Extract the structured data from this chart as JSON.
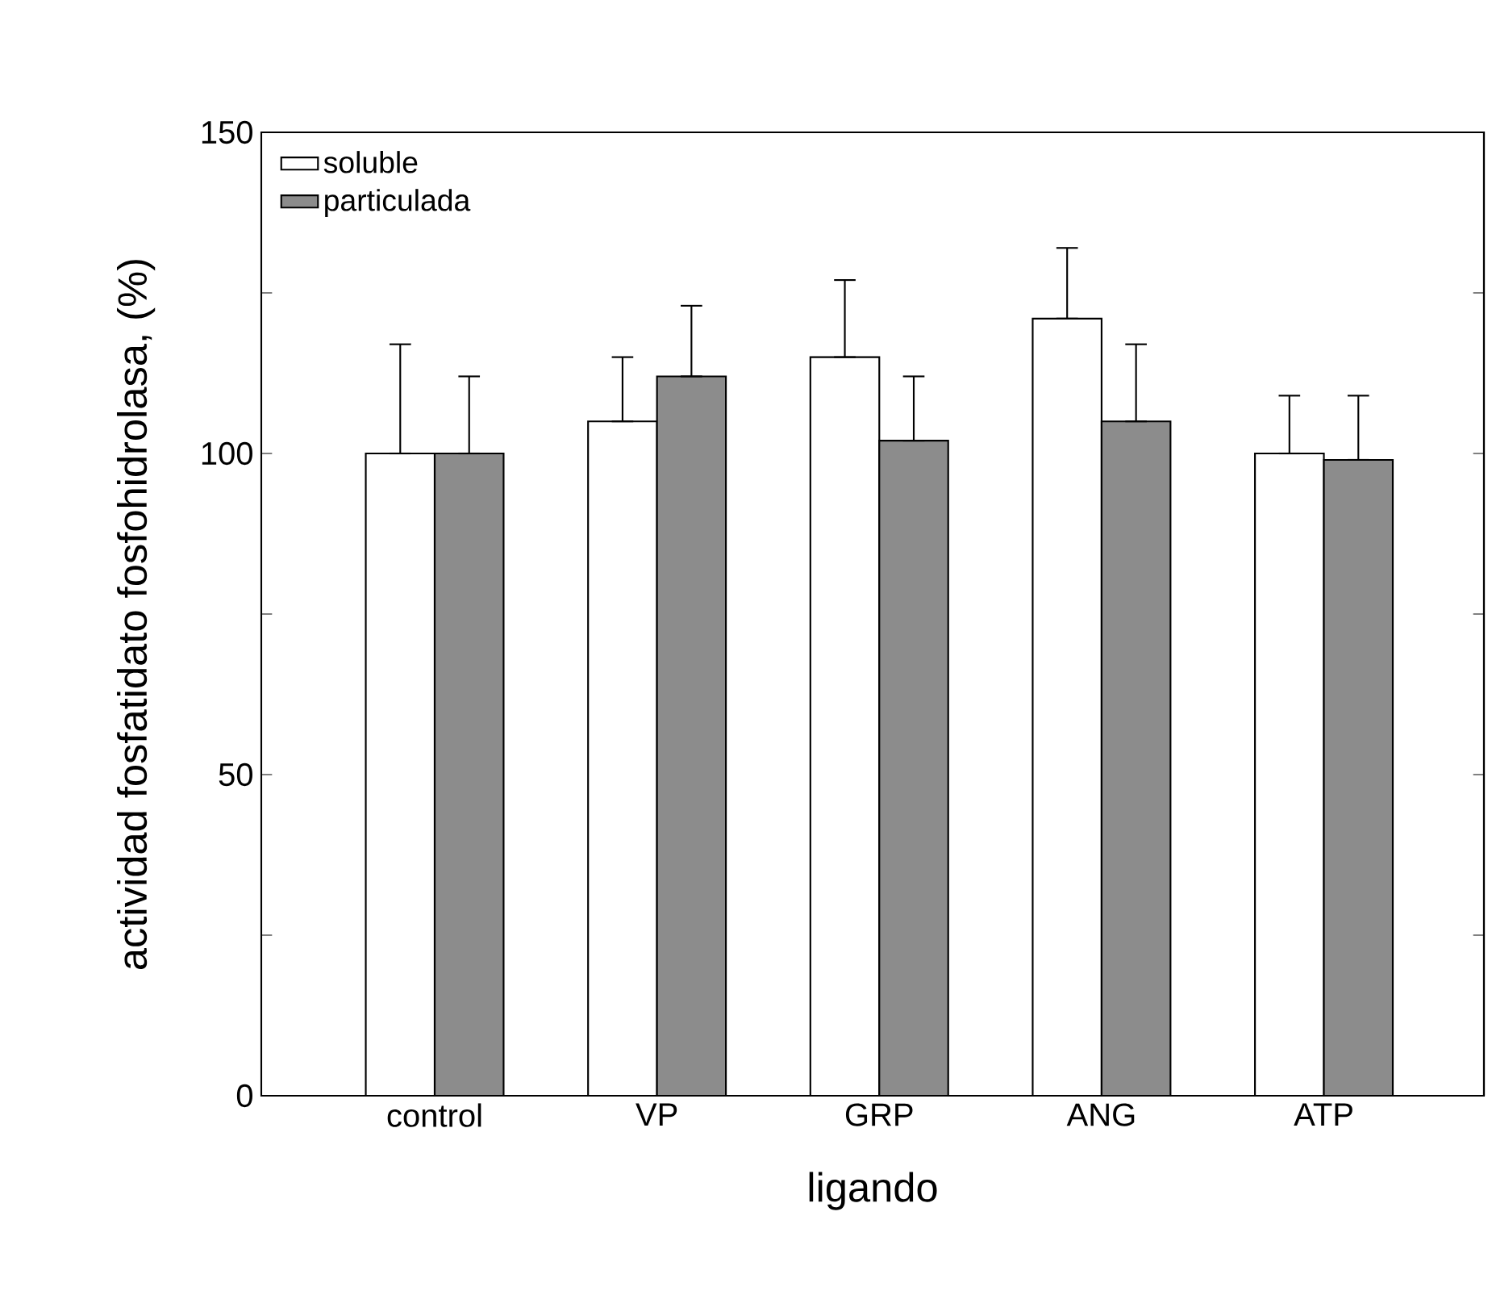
{
  "chart_data": {
    "type": "bar",
    "xlabel": "ligando",
    "ylabel": "actividad fosfatidato fosfohidrolasa, (%)",
    "categories": [
      "control",
      "VP",
      "GRP",
      "ANG",
      "ATP"
    ],
    "series": [
      {
        "name": "soluble",
        "color": "#ffffff",
        "values": [
          100,
          105,
          115,
          121,
          100
        ],
        "errors": [
          [
            100,
            117
          ],
          [
            105,
            115
          ],
          [
            115,
            127
          ],
          [
            121,
            132
          ],
          [
            100,
            109
          ]
        ]
      },
      {
        "name": "particulada",
        "color": "#8c8c8c",
        "values": [
          100,
          112,
          102,
          105,
          99
        ],
        "errors": [
          [
            100,
            112
          ],
          [
            112,
            123
          ],
          [
            102,
            112
          ],
          [
            105,
            117
          ],
          [
            99,
            109
          ]
        ]
      }
    ],
    "ylim": [
      0,
      150
    ],
    "yticks": [
      0,
      {
        "value": 25,
        "label": null
      },
      50,
      {
        "value": 75,
        "label": null
      },
      100,
      {
        "value": 125,
        "label": null
      },
      150
    ],
    "grid": false,
    "legend": "top left"
  }
}
